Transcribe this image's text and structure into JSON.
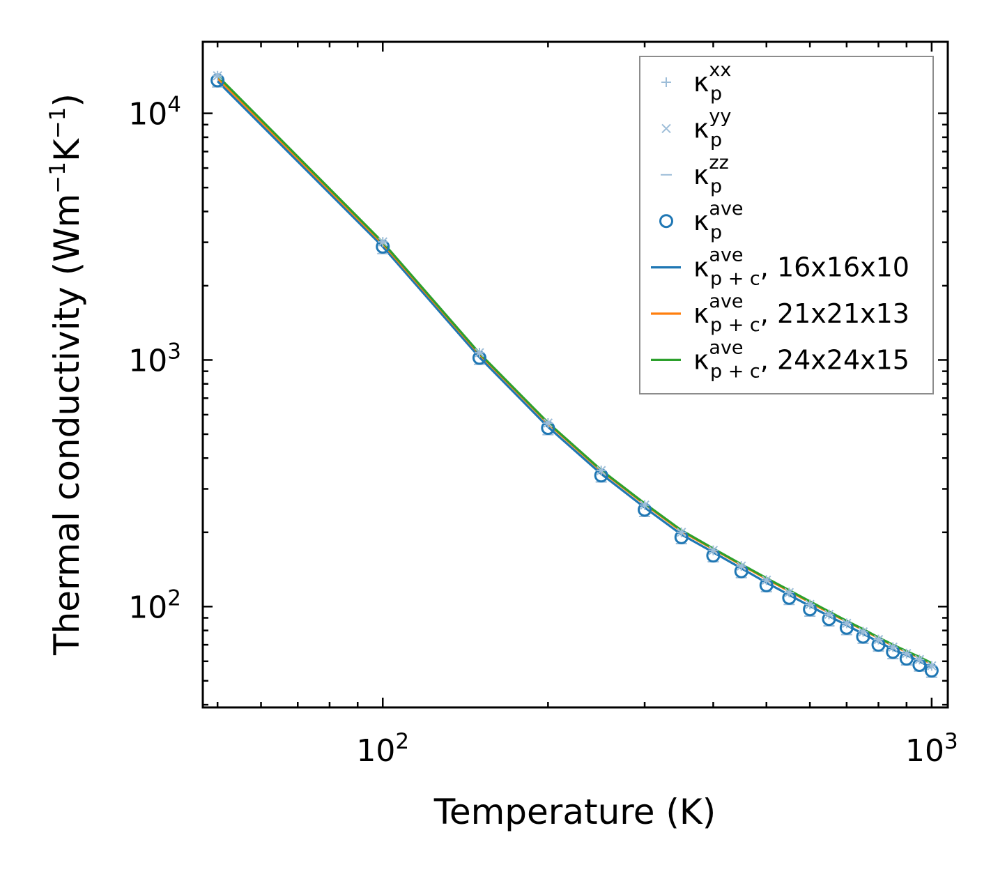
{
  "chart_data": {
    "type": "line",
    "xscale": "log",
    "yscale": "log",
    "xlabel": "Temperature (K)",
    "ylabel_main": "Thermal conductivity (Wm",
    "ylabel_sup1": "−1",
    "ylabel_mid": "K",
    "ylabel_sup2": "−1",
    "ylabel_close": ")",
    "xlim": [
      47,
      1070
    ],
    "ylim": [
      39,
      19500
    ],
    "x_ticks": [
      {
        "base": "10",
        "exp": "2",
        "value": 100
      },
      {
        "base": "10",
        "exp": "3",
        "value": 1000
      }
    ],
    "y_ticks": [
      {
        "base": "10",
        "exp": "2",
        "value": 100
      },
      {
        "base": "10",
        "exp": "3",
        "value": 1000
      },
      {
        "base": "10",
        "exp": "4",
        "value": 10000
      }
    ],
    "x": [
      50,
      100,
      150,
      200,
      250,
      300,
      350,
      400,
      450,
      500,
      550,
      600,
      650,
      700,
      750,
      800,
      850,
      900,
      950,
      1000
    ],
    "series": [
      {
        "name": "kxx",
        "values": [
          14200,
          3010,
          1070,
          555,
          356,
          258,
          200,
          169,
          146,
          128,
          114,
          102,
          93,
          85.5,
          79,
          73.5,
          68.5,
          64.5,
          61,
          57.5
        ]
      },
      {
        "name": "kyy",
        "values": [
          14200,
          3010,
          1070,
          555,
          356,
          258,
          200,
          169,
          146,
          128,
          114,
          102,
          93,
          85.5,
          79,
          73.5,
          68.5,
          64.5,
          61,
          57.5
        ]
      },
      {
        "name": "kzz",
        "values": [
          12800,
          2700,
          960,
          498,
          320,
          232,
          180,
          152,
          131,
          115,
          102,
          91.5,
          83.5,
          77,
          71,
          66,
          61.5,
          58,
          54.8,
          51.7
        ]
      },
      {
        "name": "kave",
        "values": [
          13600,
          2880,
          1020,
          530,
          340,
          247,
          191,
          161,
          139,
          122,
          108.5,
          97.5,
          89,
          82,
          75.5,
          70,
          65.5,
          61.5,
          58,
          55
        ]
      },
      {
        "name": "kpc_16",
        "values": [
          13500,
          2880,
          1025,
          535,
          345,
          252,
          196,
          166,
          143,
          125,
          111.5,
          100.5,
          91.5,
          84,
          77.5,
          72,
          67,
          63.5,
          60,
          56.5
        ]
      },
      {
        "name": "kpc_21",
        "values": [
          13900,
          2960,
          1055,
          552,
          355,
          260,
          202,
          171,
          147.5,
          129.5,
          115.5,
          104,
          94.5,
          87,
          80.5,
          74.5,
          69.5,
          65.5,
          62,
          58.5
        ]
      },
      {
        "name": "kpc_24",
        "values": [
          14200,
          3000,
          1065,
          557,
          358,
          262,
          204,
          172,
          148.5,
          130.5,
          116.5,
          105,
          95.5,
          87.5,
          81,
          75,
          70,
          66,
          62.5,
          59
        ]
      }
    ],
    "legend": [
      {
        "key": "kxx",
        "base": "κ",
        "sub": "p",
        "sup": "xx",
        "suffix": "",
        "marker": "plus",
        "color": "#9dbdd8"
      },
      {
        "key": "kyy",
        "base": "κ",
        "sub": "p",
        "sup": "yy",
        "suffix": "",
        "marker": "x",
        "color": "#9dbdd8"
      },
      {
        "key": "kzz",
        "base": "κ",
        "sub": "p",
        "sup": "zz",
        "suffix": "",
        "marker": "hline",
        "color": "#9dbdd8"
      },
      {
        "key": "kave",
        "base": "κ",
        "sub": "p",
        "sup": "ave",
        "suffix": "",
        "marker": "circle",
        "color": "#1f77b4"
      },
      {
        "key": "kpc_16",
        "base": "κ",
        "sub": "p + c",
        "sup": "ave",
        "suffix": ", 16x16x10",
        "marker": "line",
        "color": "#1f77b4"
      },
      {
        "key": "kpc_21",
        "base": "κ",
        "sub": "p + c",
        "sup": "ave",
        "suffix": ", 21x21x13",
        "marker": "line",
        "color": "#ff7f0e"
      },
      {
        "key": "kpc_24",
        "base": "κ",
        "sub": "p + c",
        "sup": "ave",
        "suffix": ", 24x24x15",
        "marker": "line",
        "color": "#2ca02c"
      }
    ],
    "legend_location": "top-right",
    "grid": false
  }
}
